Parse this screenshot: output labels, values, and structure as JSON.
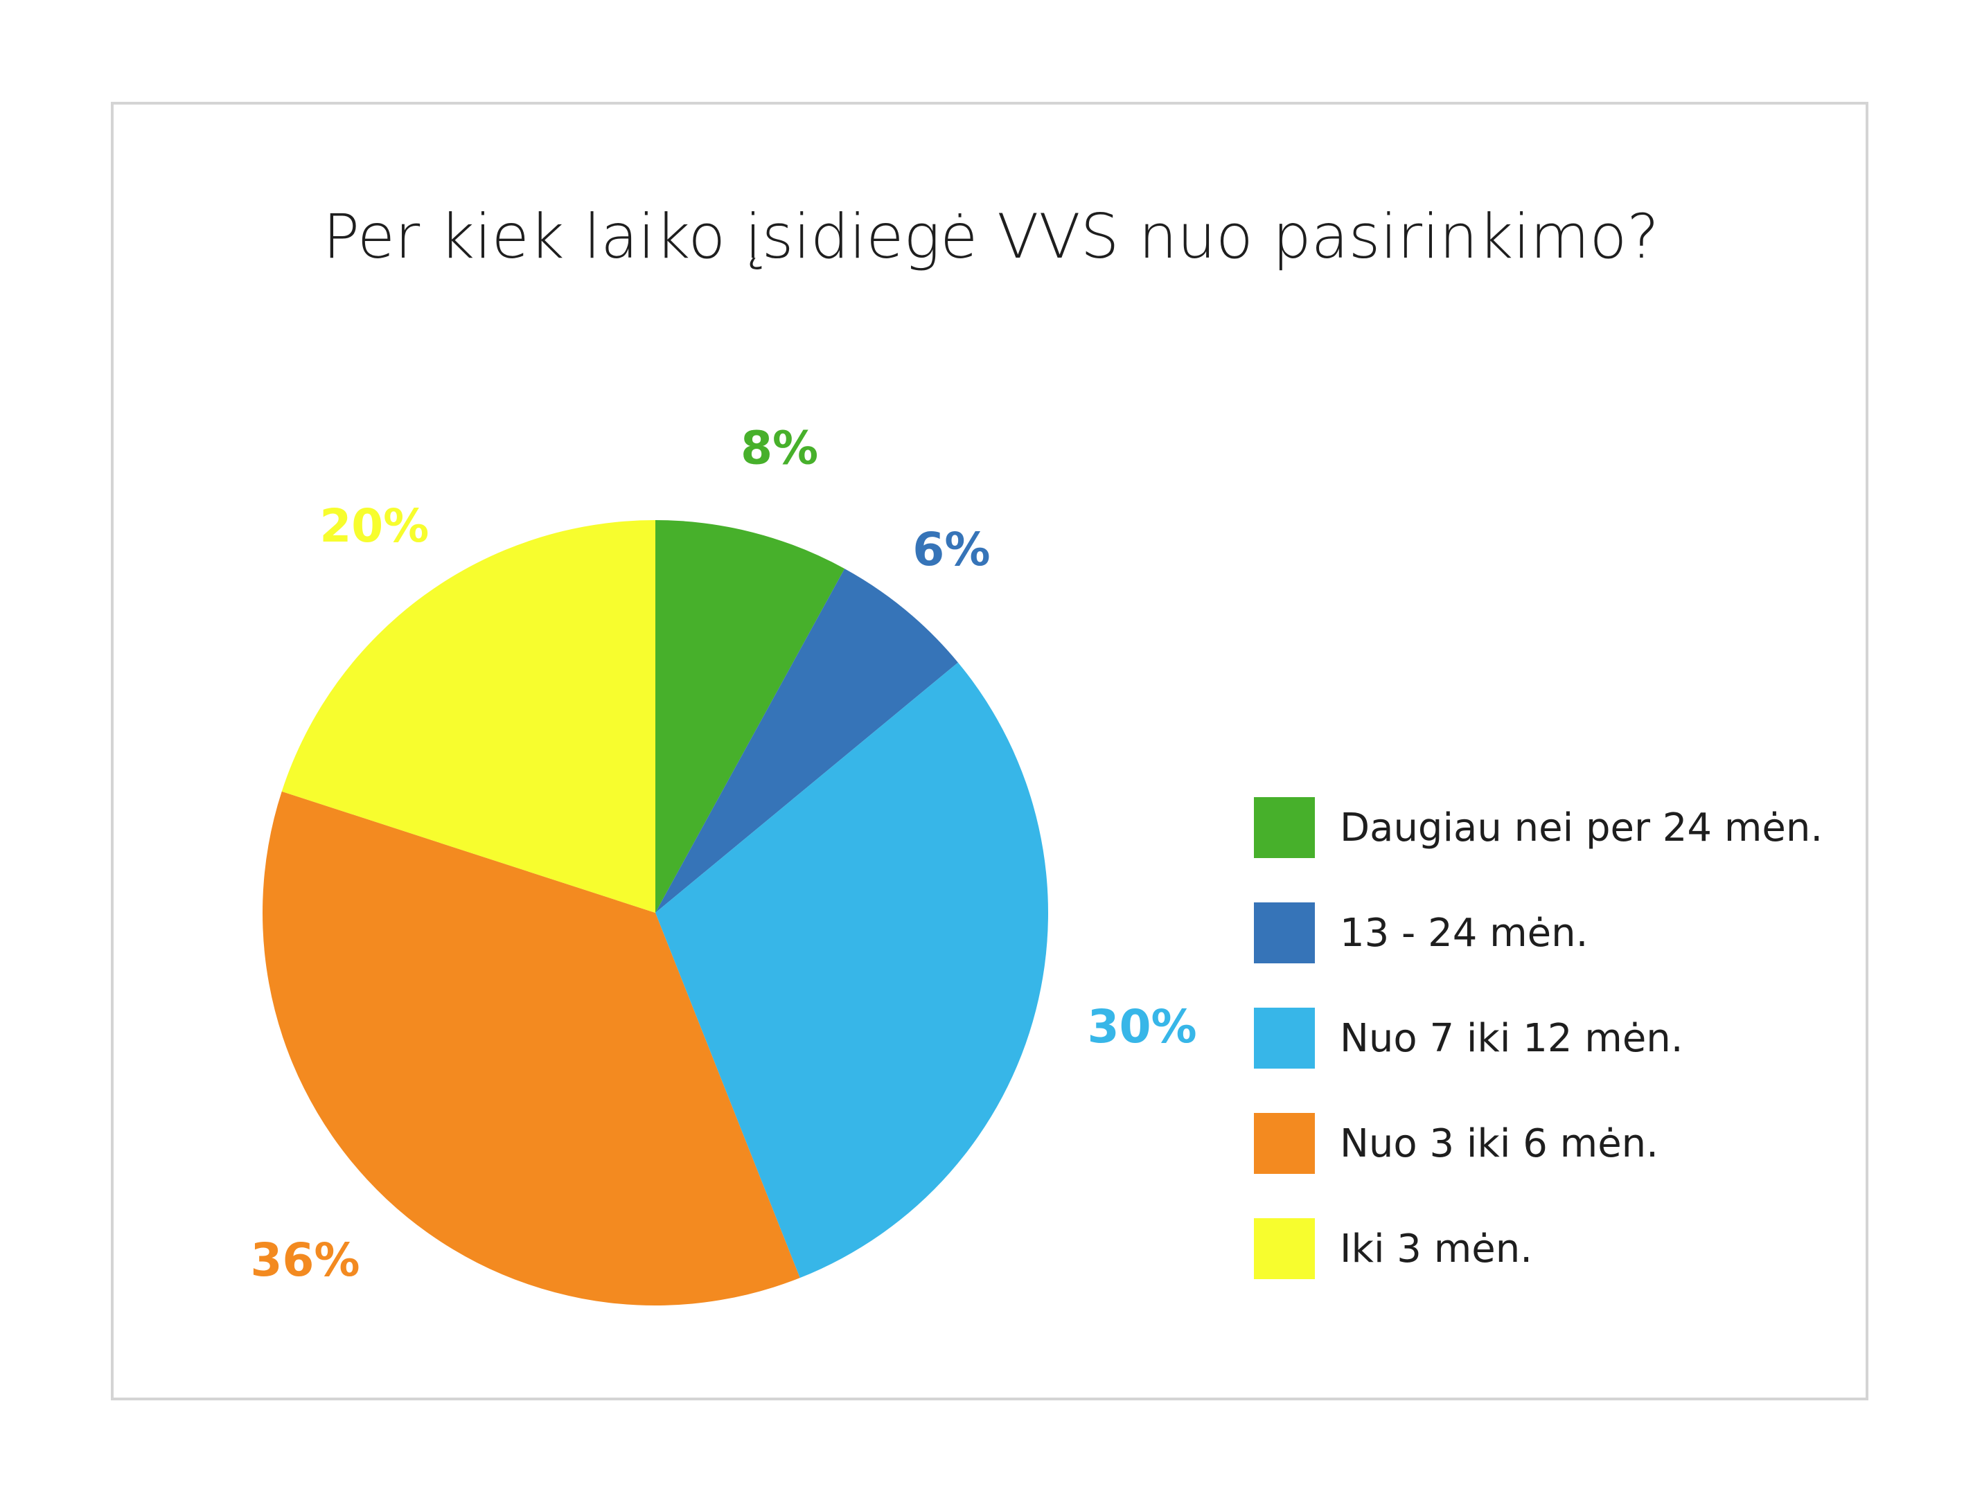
{
  "chart_data": {
    "type": "pie",
    "title": "Per kiek laiko įsidiegė VVS nuo pasirinkimo?",
    "categories": [
      "Daugiau nei per 24 mėn.",
      "13 - 24 mėn.",
      "Nuo 7 iki 12 mėn.",
      "Nuo 3 iki 6 mėn.",
      "Iki 3 mėn."
    ],
    "values": [
      8,
      6,
      30,
      36,
      20
    ],
    "data_labels": [
      "8%",
      "6%",
      "30%",
      "36%",
      "20%"
    ],
    "colors": [
      "#47b02b",
      "#3674b8",
      "#37b6e8",
      "#f38a20",
      "#f7fd2e"
    ],
    "label_colors": [
      "#47b02b",
      "#3674b8",
      "#37b6e8",
      "#f38a20",
      "#f7fd2e"
    ],
    "start_angle": "12 o'clock",
    "direction": "clockwise",
    "legend_position": "right"
  }
}
